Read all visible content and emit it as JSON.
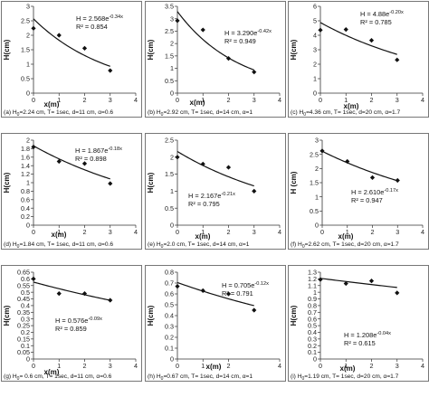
{
  "chart_data": [
    {
      "type": "scatter",
      "xlabel": "x(m)",
      "ylabel": "H(cm)",
      "xlim": [
        0,
        4
      ],
      "ylim": [
        0,
        3
      ],
      "xticks": [
        "0",
        "1",
        "2",
        "3",
        "4"
      ],
      "yticks": [
        "0",
        "0.5",
        "1",
        "1.5",
        "2",
        "2.5",
        "3"
      ],
      "x": [
        0,
        1,
        2,
        3
      ],
      "y": [
        2.24,
        2.0,
        1.55,
        0.78
      ],
      "fit": {
        "a": 2.568,
        "b": -0.34
      },
      "equation": {
        "base": "H = 2.568e",
        "exp": "-0.34x"
      },
      "r2": "R² = 0.854",
      "caption": {
        "pre": "(a) H",
        "sub": "0",
        "post": "=2.24 cm, T= 1sec, d=11 cm, α=0.6"
      }
    },
    {
      "type": "scatter",
      "xlabel": "x(m)",
      "ylabel": "H(cm)",
      "xlim": [
        0,
        4
      ],
      "ylim": [
        0,
        3.5
      ],
      "xticks": [
        "0",
        "1",
        "2",
        "3",
        "4"
      ],
      "yticks": [
        "0",
        "0.5",
        "1",
        "1.5",
        "2",
        "2.5",
        "3",
        "3.5"
      ],
      "x": [
        0,
        1,
        2,
        3
      ],
      "y": [
        2.92,
        2.55,
        1.4,
        0.85
      ],
      "fit": {
        "a": 3.29,
        "b": -0.42
      },
      "equation": {
        "base": "H = 3.290e",
        "exp": "-0.42x"
      },
      "r2": "R² = 0.949",
      "caption": {
        "pre": "(b) H",
        "sub": "0",
        "post": "=2.92 cm, T= 1sec, d=14 cm, α=1"
      }
    },
    {
      "type": "scatter",
      "xlabel": "x(m)",
      "ylabel": "H(cm)",
      "xlim": [
        0,
        4
      ],
      "ylim": [
        0,
        6
      ],
      "xticks": [
        "0",
        "1",
        "2",
        "3",
        "4"
      ],
      "yticks": [
        "0",
        "1",
        "2",
        "3",
        "4",
        "5",
        "6"
      ],
      "x": [
        0,
        1,
        2,
        3
      ],
      "y": [
        4.36,
        4.4,
        3.65,
        2.3
      ],
      "fit": {
        "a": 4.88,
        "b": -0.2
      },
      "equation": {
        "base": "H = 4.88e",
        "exp": "-0.20x"
      },
      "r2": "R² = 0.785",
      "caption": {
        "pre": "(c) H",
        "sub": "0",
        "post": "=4.36 cm, T= 1sec, d=20 cm, α=1.7"
      }
    },
    {
      "type": "scatter",
      "xlabel": "x(m)",
      "ylabel": "H(cm)",
      "xlim": [
        0,
        4
      ],
      "ylim": [
        0,
        2
      ],
      "xticks": [
        "0",
        "1",
        "2",
        "3",
        "4"
      ],
      "yticks": [
        "0",
        "0.2",
        "0.4",
        "0.6",
        "0.8",
        "1",
        "1.2",
        "1.4",
        "1.6",
        "1.8",
        "2"
      ],
      "x": [
        0,
        1,
        2,
        3
      ],
      "y": [
        1.84,
        1.5,
        1.45,
        0.98
      ],
      "fit": {
        "a": 1.867,
        "b": -0.18
      },
      "equation": {
        "base": "H = 1.867e",
        "exp": "-0.18x"
      },
      "r2": "R² = 0.898",
      "caption": {
        "pre": "(d) H",
        "sub": "0",
        "post": "=1.84 cm, T= 1sec, d=11 cm, α=0.6"
      }
    },
    {
      "type": "scatter",
      "xlabel": "x(m)",
      "ylabel": "H(cm)",
      "xlim": [
        0,
        4
      ],
      "ylim": [
        0,
        2.5
      ],
      "xticks": [
        "0",
        "1",
        "2",
        "3",
        "4"
      ],
      "yticks": [
        "0",
        "0.5",
        "1",
        "1.5",
        "2",
        "2.5"
      ],
      "x": [
        0,
        1,
        2,
        3
      ],
      "y": [
        2.0,
        1.8,
        1.7,
        1.0
      ],
      "fit": {
        "a": 2.167,
        "b": -0.21
      },
      "equation": {
        "base": "H = 2.167e",
        "exp": "-0.21x"
      },
      "r2": "R² = 0.795",
      "caption": {
        "pre": "(e) H",
        "sub": "0",
        "post": "=2.0 cm, T= 1sec, d=14 cm, α=1"
      }
    },
    {
      "type": "scatter",
      "xlabel": "x(m)",
      "ylabel": "H (cm)",
      "xlim": [
        0,
        4
      ],
      "ylim": [
        0,
        3
      ],
      "xticks": [
        "0",
        "1",
        "2",
        "3",
        "4"
      ],
      "yticks": [
        "0",
        "0.5",
        "1",
        "1.5",
        "2",
        "2.5",
        "3"
      ],
      "x": [
        0,
        1,
        2,
        3
      ],
      "y": [
        2.62,
        2.25,
        1.68,
        1.58
      ],
      "fit": {
        "a": 2.61,
        "b": -0.17
      },
      "equation": {
        "base": "H = 2.610e",
        "exp": "-0.17x"
      },
      "r2": "R² = 0.947",
      "caption": {
        "pre": "(f) H",
        "sub": "0",
        "post": "=2.62 cm, T= 1sec, d=20 cm, α=1.7"
      }
    },
    {
      "type": "scatter",
      "xlabel": "x(m)",
      "ylabel": "H(cm)",
      "xlim": [
        0,
        4
      ],
      "ylim": [
        0,
        0.65
      ],
      "xticks": [
        "0",
        "1",
        "2",
        "3",
        "4"
      ],
      "yticks": [
        "0",
        "0.05",
        "0.1",
        "0.15",
        "0.2",
        "0.25",
        "0.3",
        "0.35",
        "0.4",
        "0.45",
        "0.5",
        "0.55",
        "0.6",
        "0.65"
      ],
      "x": [
        0,
        1,
        2,
        3
      ],
      "y": [
        0.6,
        0.49,
        0.49,
        0.44
      ],
      "fit": {
        "a": 0.576,
        "b": -0.09
      },
      "equation": {
        "base": "H = 0.576e",
        "exp": "-0.09x"
      },
      "r2": "R² = 0.859",
      "caption": {
        "pre": "(g) H",
        "sub": "0",
        "post": "= 0.6 cm, T= 1sec, d=11 cm, α=0.6"
      }
    },
    {
      "type": "scatter",
      "xlabel": "x(m)",
      "ylabel": "H(cm)",
      "xlim": [
        0,
        4
      ],
      "ylim": [
        0,
        0.8
      ],
      "xticks": [
        "0",
        "1",
        "2",
        "4"
      ],
      "xtick_values": [
        0,
        1,
        2,
        4
      ],
      "yticks": [
        "0",
        "0.1",
        "0.2",
        "0.3",
        "0.4",
        "0.5",
        "0.6",
        "0.7",
        "0.8"
      ],
      "x": [
        0,
        1,
        2,
        3
      ],
      "y": [
        0.67,
        0.63,
        0.6,
        0.45
      ],
      "fit": {
        "a": 0.705,
        "b": -0.12
      },
      "equation": {
        "base": "H = 0.705e",
        "exp": "-0.12x"
      },
      "r2": "R² = 0.791",
      "caption": {
        "pre": "(h) H",
        "sub": "0",
        "post": "=0.67 cm, T= 1sec, d=14 cm, α=1"
      }
    },
    {
      "type": "scatter",
      "xlabel": "x(m)",
      "ylabel": "H(cm)",
      "xlim": [
        0,
        4
      ],
      "ylim": [
        0,
        1.3
      ],
      "xticks": [
        "0",
        "1",
        "2",
        "3",
        "4"
      ],
      "yticks": [
        "0",
        "0.1",
        "0.2",
        "0.3",
        "0.4",
        "0.5",
        "0.6",
        "0.7",
        "0.8",
        "0.9",
        "1",
        "1.1",
        "1.2",
        "1.3"
      ],
      "x": [
        0,
        1,
        2,
        3
      ],
      "y": [
        1.19,
        1.13,
        1.17,
        0.99
      ],
      "fit": {
        "a": 1.208,
        "b": -0.04
      },
      "equation": {
        "base": "H = 1.208e",
        "exp": "-0.04x"
      },
      "r2": "R² = 0.615",
      "caption": {
        "pre": "(i) H",
        "sub": "0",
        "post": "=1.19 cm, T= 1sec, d=20 cm, α=1.7"
      }
    }
  ]
}
